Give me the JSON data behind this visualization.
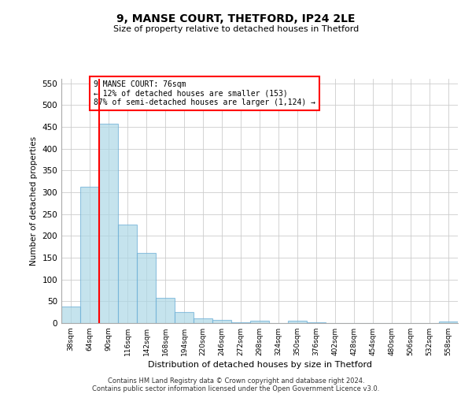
{
  "title1": "9, MANSE COURT, THETFORD, IP24 2LE",
  "title2": "Size of property relative to detached houses in Thetford",
  "xlabel": "Distribution of detached houses by size in Thetford",
  "ylabel": "Number of detached properties",
  "categories": [
    "38sqm",
    "64sqm",
    "90sqm",
    "116sqm",
    "142sqm",
    "168sqm",
    "194sqm",
    "220sqm",
    "246sqm",
    "272sqm",
    "298sqm",
    "324sqm",
    "350sqm",
    "376sqm",
    "402sqm",
    "428sqm",
    "454sqm",
    "480sqm",
    "506sqm",
    "532sqm",
    "558sqm"
  ],
  "values": [
    38,
    312,
    457,
    226,
    160,
    58,
    25,
    11,
    7,
    2,
    5,
    0,
    5,
    2,
    0,
    0,
    0,
    0,
    0,
    0,
    3
  ],
  "bar_color": "#add8e6",
  "bar_edge_color": "#6baed6",
  "bar_alpha": 0.7,
  "red_line_x": 1.5,
  "annotation_text": "9 MANSE COURT: 76sqm\n← 12% of detached houses are smaller (153)\n87% of semi-detached houses are larger (1,124) →",
  "ylim": [
    0,
    560
  ],
  "yticks": [
    0,
    50,
    100,
    150,
    200,
    250,
    300,
    350,
    400,
    450,
    500,
    550
  ],
  "footnote1": "Contains HM Land Registry data © Crown copyright and database right 2024.",
  "footnote2": "Contains public sector information licensed under the Open Government Licence v3.0.",
  "bg_color": "#ffffff",
  "grid_color": "#cccccc"
}
